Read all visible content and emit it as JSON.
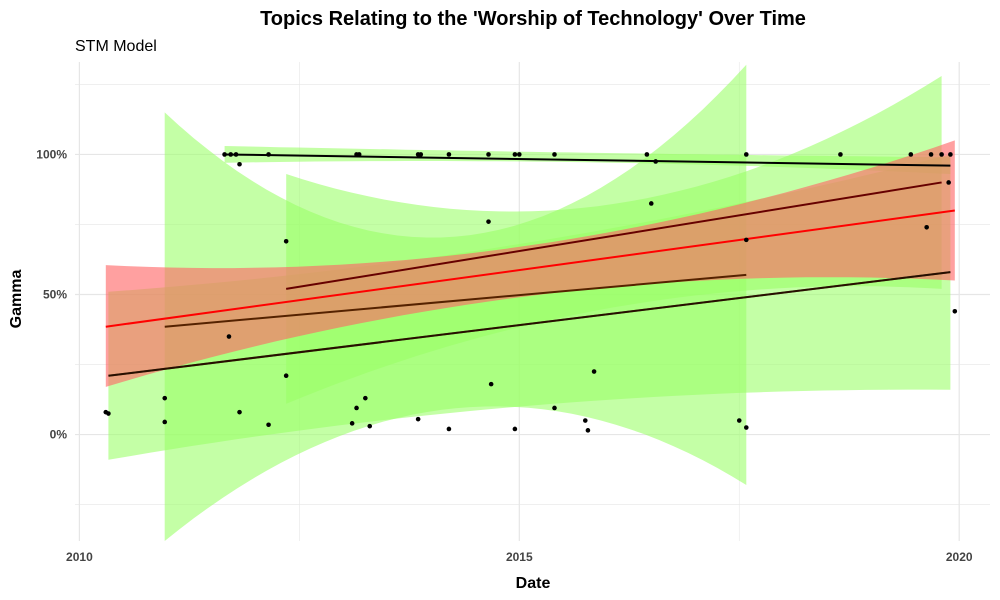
{
  "chart_data": {
    "type": "scatter",
    "title": "Topics Relating to the 'Worship of Technology' Over Time",
    "subtitle": "STM Model",
    "xlabel": "Date",
    "ylabel": "Gamma",
    "x_ticks": [
      "2010",
      "2015",
      "2020"
    ],
    "y_ticks": [
      "0%",
      "50%",
      "100%"
    ],
    "x_range": [
      2009.95,
      2020.35
    ],
    "y_range": [
      -0.38,
      1.33
    ],
    "grid": true,
    "legend": "none",
    "colors": {
      "green_band": "#99ff66",
      "red_band": "#ff6666",
      "brown_band": "#cc8844",
      "red_line": "#ff0000",
      "dark_red_line": "#660000",
      "brown_line": "#552200",
      "black_line": "#000000",
      "point": "#000000",
      "grid": "#e6e6e6"
    },
    "points": [
      {
        "x": 2010.3,
        "y": 0.08
      },
      {
        "x": 2010.33,
        "y": 0.075
      },
      {
        "x": 2010.97,
        "y": 0.13
      },
      {
        "x": 2010.97,
        "y": 0.045
      },
      {
        "x": 2011.65,
        "y": 1.0
      },
      {
        "x": 2011.72,
        "y": 1.0
      },
      {
        "x": 2011.78,
        "y": 1.0
      },
      {
        "x": 2011.7,
        "y": 0.35
      },
      {
        "x": 2011.82,
        "y": 0.965
      },
      {
        "x": 2011.82,
        "y": 0.08
      },
      {
        "x": 2012.15,
        "y": 1.0
      },
      {
        "x": 2012.15,
        "y": 0.035
      },
      {
        "x": 2012.35,
        "y": 0.69
      },
      {
        "x": 2012.35,
        "y": 0.21
      },
      {
        "x": 2013.1,
        "y": 0.04
      },
      {
        "x": 2013.15,
        "y": 1.0
      },
      {
        "x": 2013.18,
        "y": 1.0
      },
      {
        "x": 2013.15,
        "y": 0.095
      },
      {
        "x": 2013.25,
        "y": 0.13
      },
      {
        "x": 2013.3,
        "y": 0.03
      },
      {
        "x": 2013.85,
        "y": 1.0
      },
      {
        "x": 2013.88,
        "y": 1.0
      },
      {
        "x": 2013.85,
        "y": 0.055
      },
      {
        "x": 2014.2,
        "y": 1.0
      },
      {
        "x": 2014.2,
        "y": 0.02
      },
      {
        "x": 2014.65,
        "y": 1.0
      },
      {
        "x": 2014.65,
        "y": 0.76
      },
      {
        "x": 2014.68,
        "y": 0.18
      },
      {
        "x": 2014.95,
        "y": 1.0
      },
      {
        "x": 2015.0,
        "y": 1.0
      },
      {
        "x": 2014.95,
        "y": 0.02
      },
      {
        "x": 2015.4,
        "y": 1.0
      },
      {
        "x": 2015.4,
        "y": 0.095
      },
      {
        "x": 2015.75,
        "y": 0.05
      },
      {
        "x": 2015.78,
        "y": 0.015
      },
      {
        "x": 2015.85,
        "y": 0.225
      },
      {
        "x": 2016.45,
        "y": 1.0
      },
      {
        "x": 2016.5,
        "y": 0.825
      },
      {
        "x": 2016.55,
        "y": 0.975
      },
      {
        "x": 2017.5,
        "y": 0.05
      },
      {
        "x": 2017.58,
        "y": 1.0
      },
      {
        "x": 2017.58,
        "y": 0.695
      },
      {
        "x": 2017.58,
        "y": 0.025
      },
      {
        "x": 2018.65,
        "y": 1.0
      },
      {
        "x": 2019.45,
        "y": 1.0
      },
      {
        "x": 2019.63,
        "y": 0.74
      },
      {
        "x": 2019.68,
        "y": 1.0
      },
      {
        "x": 2019.8,
        "y": 1.0
      },
      {
        "x": 2019.88,
        "y": 0.9
      },
      {
        "x": 2019.9,
        "y": 1.0
      },
      {
        "x": 2019.95,
        "y": 0.44
      }
    ],
    "series": [
      {
        "color": "green_band",
        "line": "brown_line",
        "x0": 2010.33,
        "x1": 2019.9,
        "fit": [
          0.21,
          0.58
        ],
        "band": {
          "x": [
            2010.33,
            2015.0,
            2019.9
          ],
          "lower": [
            -0.09,
            0.1,
            0.16
          ],
          "upper": [
            0.51,
            0.68,
            1.0
          ]
        }
      },
      {
        "color": "green_band",
        "line": "brown_line",
        "x0": 2010.97,
        "x1": 2017.58,
        "fit": [
          0.385,
          0.57
        ],
        "band": {
          "x": [
            2010.97,
            2014.6,
            2017.58
          ],
          "lower": [
            -0.38,
            0.1,
            -0.18
          ],
          "upper": [
            1.15,
            0.72,
            1.32
          ]
        }
      },
      {
        "color": "green_band",
        "line": "dark_red_line",
        "x0": 2012.35,
        "x1": 2019.8,
        "fit": [
          0.52,
          0.9
        ],
        "band": {
          "x": [
            2012.35,
            2016.0,
            2019.8
          ],
          "lower": [
            0.11,
            0.45,
            0.52
          ],
          "upper": [
            0.93,
            0.82,
            1.28
          ]
        }
      },
      {
        "color": "green_band",
        "line": "black_line",
        "x0": 2011.65,
        "x1": 2019.9,
        "fit": [
          1.0,
          0.96
        ],
        "band": {
          "x": [
            2011.65,
            2015.0,
            2019.9
          ],
          "lower": [
            0.97,
            0.975,
            0.93
          ],
          "upper": [
            1.03,
            1.01,
            0.99
          ]
        }
      },
      {
        "color": "red_band",
        "line": "red_line",
        "x0": 2010.3,
        "x1": 2019.95,
        "fit": [
          0.385,
          0.8
        ],
        "band": {
          "x": [
            2010.3,
            2015.0,
            2019.95
          ],
          "lower": [
            0.17,
            0.49,
            0.55
          ],
          "upper": [
            0.605,
            0.67,
            1.05
          ]
        }
      },
      {
        "color": "green_band",
        "line": "black_line",
        "x0": 2010.33,
        "x1": 2019.9,
        "fit": [
          0.21,
          0.58
        ],
        "band": null
      }
    ]
  }
}
